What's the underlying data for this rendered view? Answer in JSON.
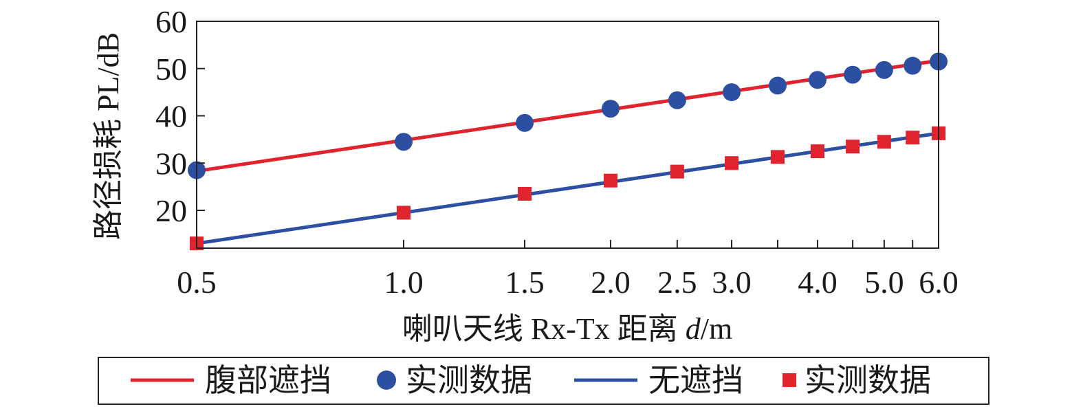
{
  "chart_data": {
    "type": "line",
    "xscale": "log",
    "x_ticks": [
      0.5,
      1.0,
      1.5,
      2.0,
      2.5,
      3.0,
      3.5,
      4.0,
      4.5,
      5.0,
      5.5,
      6.0
    ],
    "x_tick_labels": [
      "0.5",
      "1.0",
      "1.5",
      "2.0",
      "2.5",
      "3.0",
      "",
      "4.0",
      "",
      "5.0",
      "",
      "6.0"
    ],
    "y_ticks": [
      20,
      30,
      40,
      50,
      60
    ],
    "xlim": [
      0.5,
      6.0
    ],
    "ylim": [
      12,
      60
    ],
    "xlabel_prefix": "喇叭天线 Rx-Tx 距离 ",
    "xlabel_var": "d",
    "xlabel_unit": "/m",
    "ylabel": "路径损耗 PL/dB",
    "legend_position": "bottom",
    "series": [
      {
        "name": "腹部遮挡",
        "kind": "line",
        "color": "#e0242d",
        "x": [
          0.5,
          6.0
        ],
        "y": [
          28.3,
          51.7
        ]
      },
      {
        "name": "实测数据",
        "kind": "marker-circle",
        "color": "#2d4fa2",
        "x": [
          0.5,
          1.0,
          1.5,
          2.0,
          2.5,
          3.0,
          3.5,
          4.0,
          4.5,
          5.0,
          5.5,
          6.0
        ],
        "y": [
          28.5,
          34.5,
          38.5,
          41.5,
          43.3,
          45.0,
          46.4,
          47.6,
          48.7,
          49.7,
          50.6,
          51.5
        ]
      },
      {
        "name": "无遮挡",
        "kind": "line",
        "color": "#2d4fa2",
        "x": [
          0.5,
          6.0
        ],
        "y": [
          13.0,
          36.3
        ]
      },
      {
        "name": "实测数据",
        "kind": "marker-square",
        "color": "#e0242d",
        "x": [
          0.5,
          1.0,
          1.5,
          2.0,
          2.5,
          3.0,
          3.5,
          4.0,
          4.5,
          5.0,
          5.5,
          6.0
        ],
        "y": [
          13.0,
          19.5,
          23.5,
          26.3,
          28.2,
          30.0,
          31.3,
          32.5,
          33.5,
          34.5,
          35.4,
          36.3
        ]
      }
    ]
  }
}
